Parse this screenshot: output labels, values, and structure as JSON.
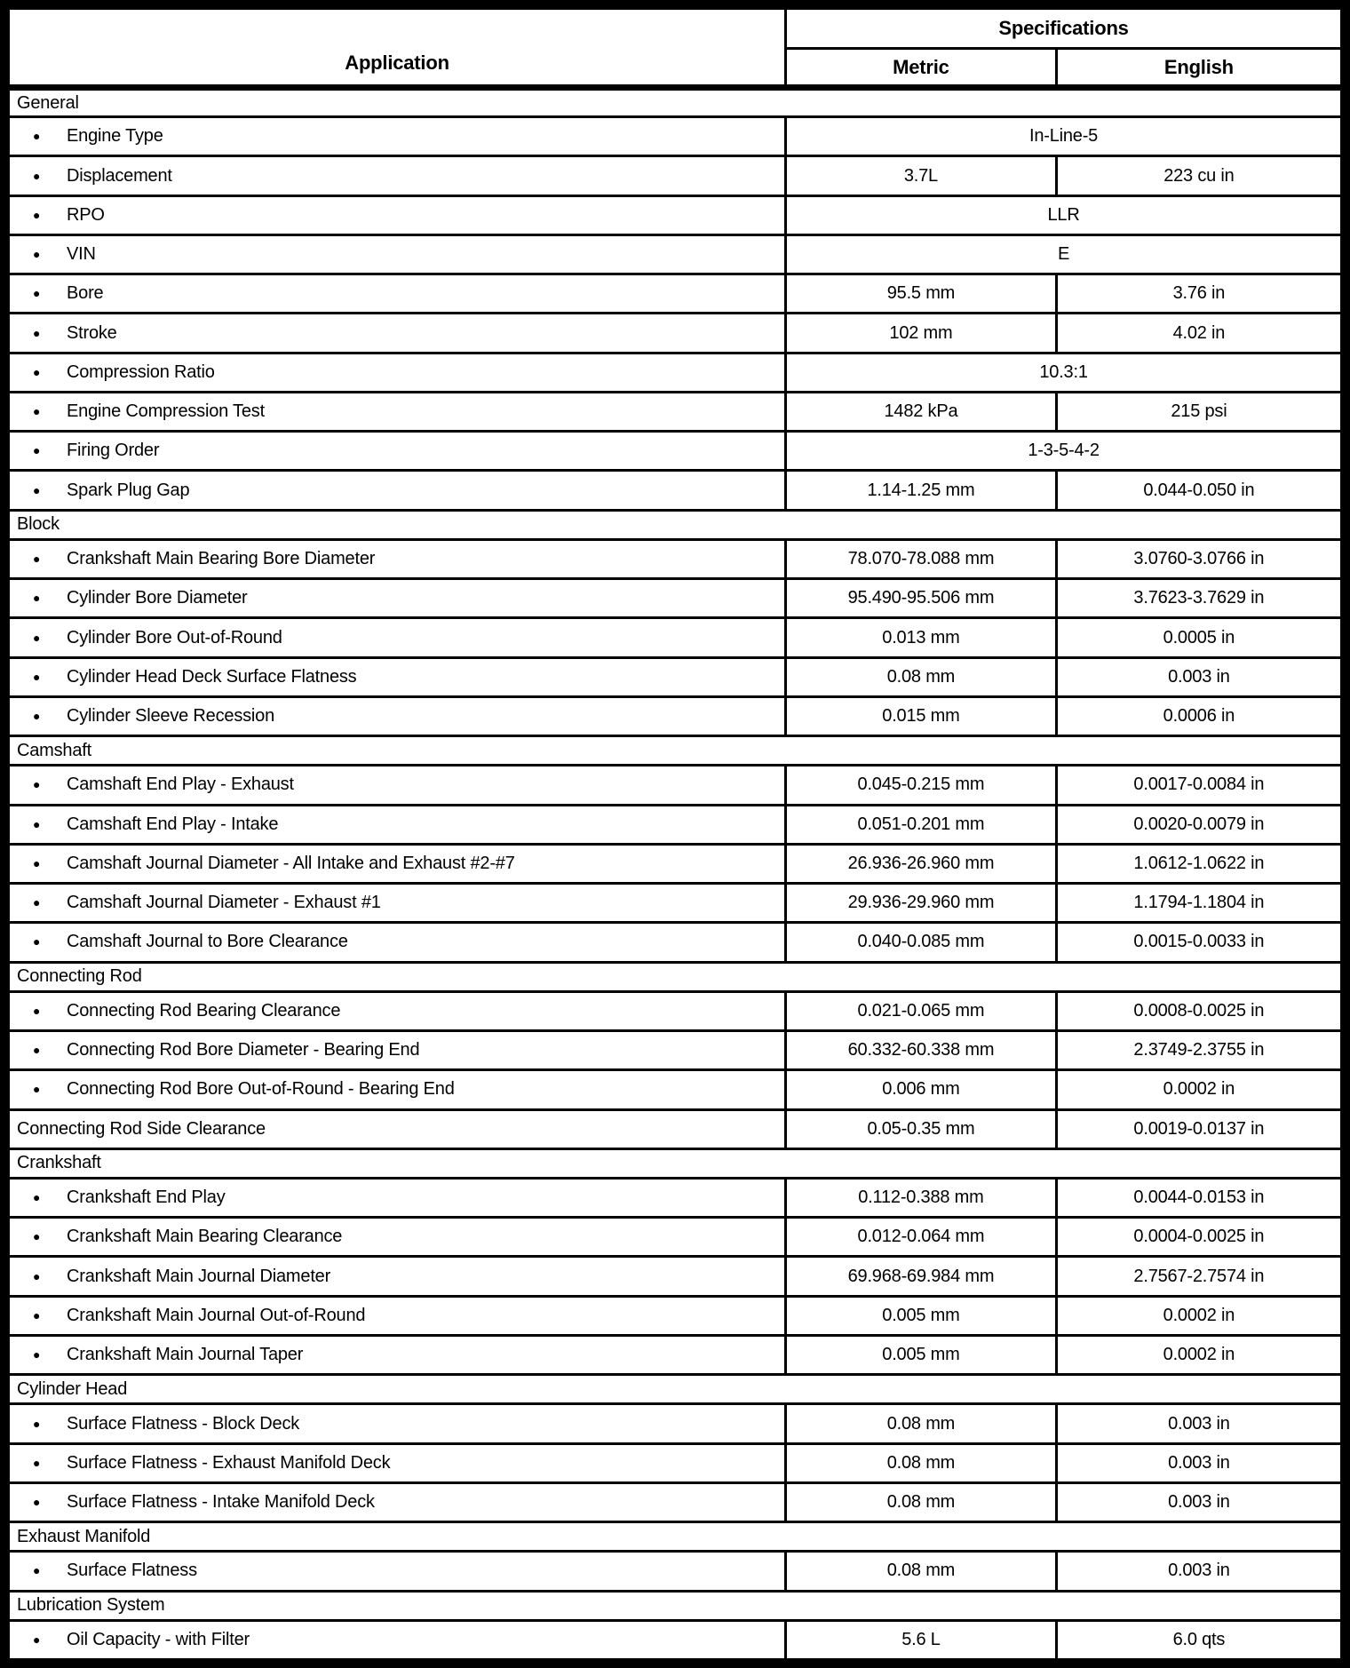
{
  "header": {
    "application": "Application",
    "specifications": "Specifications",
    "metric": "Metric",
    "english": "English"
  },
  "bullet_glyph": "●",
  "colors": {
    "border": "#000000",
    "background": "#ffffff",
    "text": "#000000"
  },
  "sections": [
    {
      "title": "General",
      "rows": [
        {
          "label": "Engine Type",
          "span": true,
          "value": "In-Line-5"
        },
        {
          "label": "Displacement",
          "metric": "3.7L",
          "english": "223 cu in"
        },
        {
          "label": "RPO",
          "span": true,
          "value": "LLR"
        },
        {
          "label": "VIN",
          "span": true,
          "value": "E"
        },
        {
          "label": "Bore",
          "metric": "95.5 mm",
          "english": "3.76 in"
        },
        {
          "label": "Stroke",
          "metric": "102 mm",
          "english": "4.02 in"
        },
        {
          "label": "Compression Ratio",
          "span": true,
          "value": "10.3:1"
        },
        {
          "label": "Engine Compression Test",
          "metric": "1482 kPa",
          "english": "215 psi"
        },
        {
          "label": "Firing Order",
          "span": true,
          "value": "1-3-5-4-2"
        },
        {
          "label": "Spark Plug Gap",
          "metric": "1.14-1.25 mm",
          "english": "0.044-0.050 in"
        }
      ]
    },
    {
      "title": "Block",
      "rows": [
        {
          "label": "Crankshaft Main Bearing Bore Diameter",
          "metric": "78.070-78.088 mm",
          "english": "3.0760-3.0766 in"
        },
        {
          "label": "Cylinder Bore Diameter",
          "metric": "95.490-95.506 mm",
          "english": "3.7623-3.7629 in"
        },
        {
          "label": "Cylinder Bore Out-of-Round",
          "metric": "0.013 mm",
          "english": "0.0005 in"
        },
        {
          "label": "Cylinder Head Deck Surface Flatness",
          "metric": "0.08 mm",
          "english": "0.003 in"
        },
        {
          "label": "Cylinder Sleeve Recession",
          "metric": "0.015 mm",
          "english": "0.0006 in"
        }
      ]
    },
    {
      "title": "Camshaft",
      "rows": [
        {
          "label": "Camshaft End Play - Exhaust",
          "metric": "0.045-0.215 mm",
          "english": "0.0017-0.0084 in"
        },
        {
          "label": "Camshaft End Play - Intake",
          "metric": "0.051-0.201 mm",
          "english": "0.0020-0.0079 in"
        },
        {
          "label": "Camshaft Journal Diameter - All Intake and Exhaust #2-#7",
          "metric": "26.936-26.960 mm",
          "english": "1.0612-1.0622 in"
        },
        {
          "label": "Camshaft Journal Diameter - Exhaust #1",
          "metric": "29.936-29.960 mm",
          "english": "1.1794-1.1804 in"
        },
        {
          "label": "Camshaft Journal to Bore Clearance",
          "metric": "0.040-0.085 mm",
          "english": "0.0015-0.0033 in"
        }
      ]
    },
    {
      "title": "Connecting Rod",
      "rows": [
        {
          "label": "Connecting Rod Bearing Clearance",
          "metric": "0.021-0.065 mm",
          "english": "0.0008-0.0025 in"
        },
        {
          "label": "Connecting Rod Bore Diameter - Bearing End",
          "metric": "60.332-60.338 mm",
          "english": "2.3749-2.3755 in"
        },
        {
          "label": "Connecting Rod Bore Out-of-Round - Bearing End",
          "metric": "0.006 mm",
          "english": "0.0002 in"
        },
        {
          "label": "Connecting Rod Side Clearance",
          "bullet": false,
          "metric": "0.05-0.35 mm",
          "english": "0.0019-0.0137 in"
        }
      ]
    },
    {
      "title": "Crankshaft",
      "rows": [
        {
          "label": "Crankshaft End Play",
          "metric": "0.112-0.388 mm",
          "english": "0.0044-0.0153 in"
        },
        {
          "label": "Crankshaft Main Bearing Clearance",
          "metric": "0.012-0.064 mm",
          "english": "0.0004-0.0025 in"
        },
        {
          "label": "Crankshaft Main Journal Diameter",
          "metric": "69.968-69.984 mm",
          "english": "2.7567-2.7574 in"
        },
        {
          "label": "Crankshaft Main Journal Out-of-Round",
          "metric": "0.005 mm",
          "english": "0.0002 in"
        },
        {
          "label": "Crankshaft Main Journal Taper",
          "metric": "0.005 mm",
          "english": "0.0002 in"
        }
      ]
    },
    {
      "title": "Cylinder Head",
      "rows": [
        {
          "label": "Surface Flatness - Block Deck",
          "metric": "0.08 mm",
          "english": "0.003 in"
        },
        {
          "label": "Surface Flatness - Exhaust Manifold Deck",
          "metric": "0.08 mm",
          "english": "0.003 in"
        },
        {
          "label": "Surface Flatness - Intake Manifold Deck",
          "metric": "0.08 mm",
          "english": "0.003 in"
        }
      ]
    },
    {
      "title": "Exhaust Manifold",
      "rows": [
        {
          "label": "Surface Flatness",
          "metric": "0.08 mm",
          "english": "0.003 in"
        }
      ]
    },
    {
      "title": "Lubrication System",
      "rows": [
        {
          "label": "Oil Capacity - with Filter",
          "metric": "5.6 L",
          "english": "6.0 qts"
        }
      ]
    }
  ]
}
